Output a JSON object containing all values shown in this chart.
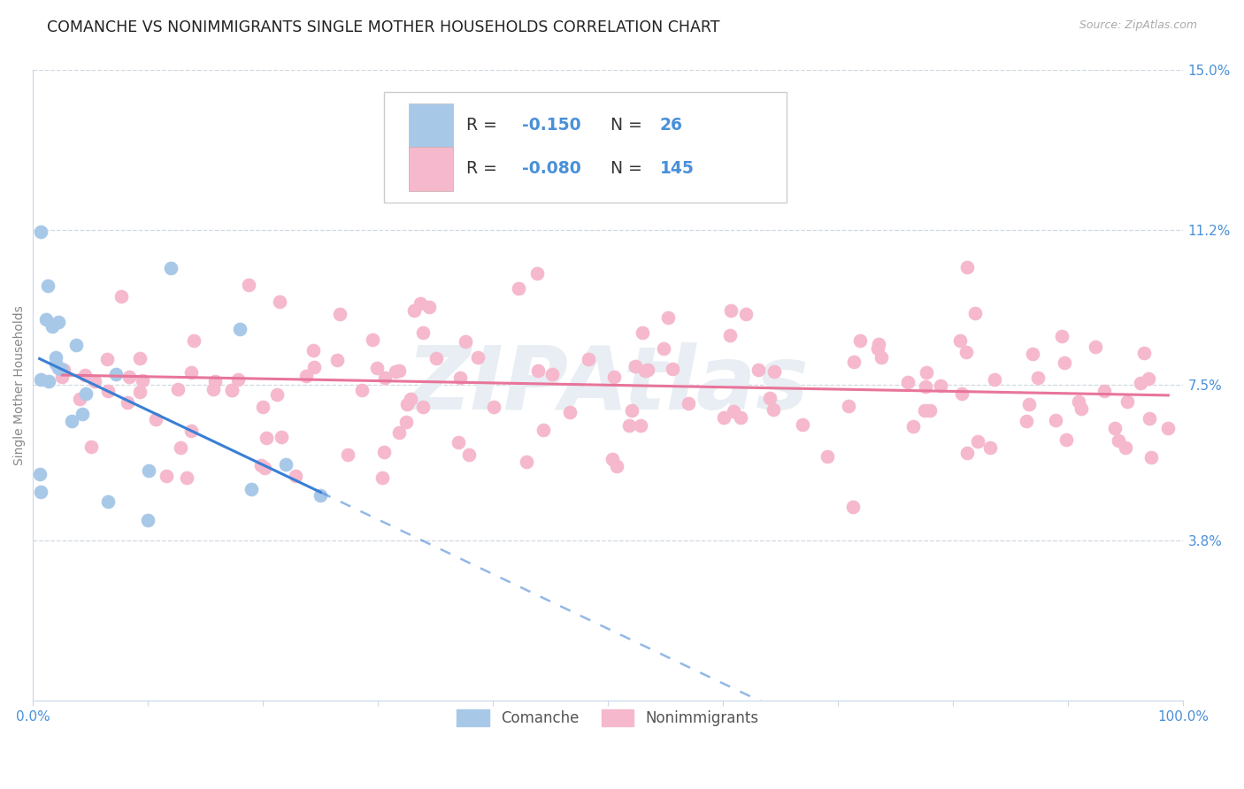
{
  "title": "COMANCHE VS NONIMMIGRANTS SINGLE MOTHER HOUSEHOLDS CORRELATION CHART",
  "source": "Source: ZipAtlas.com",
  "ylabel": "Single Mother Households",
  "xlim": [
    0,
    1.0
  ],
  "ylim": [
    0,
    0.15
  ],
  "ytick_vals": [
    0.038,
    0.075,
    0.112,
    0.15
  ],
  "ytick_labels": [
    "3.8%",
    "7.5%",
    "11.2%",
    "15.0%"
  ],
  "xtick_labels_show": [
    "0.0%",
    "100.0%"
  ],
  "comanche_R": -0.15,
  "comanche_N": 26,
  "nonimm_R": -0.08,
  "nonimm_N": 145,
  "comanche_color": "#a8c8e8",
  "nonimm_color": "#f5b8cc",
  "comanche_line_color": "#3a7fd5",
  "nonimm_line_color": "#e8759a",
  "axis_color": "#4a90d9",
  "watermark_text": "ZIPAtlas",
  "watermark_color": "#e8eef4",
  "legend_text_color": "#4a90d9",
  "grid_color": "#d0d8e0",
  "spine_color": "#c8d8e8",
  "ylabel_color": "#888888",
  "source_color": "#aaaaaa"
}
